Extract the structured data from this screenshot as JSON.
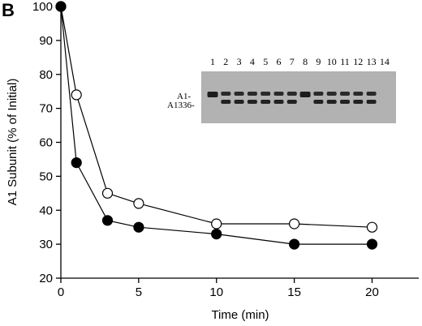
{
  "panel_label": "B",
  "chart_data": {
    "type": "line",
    "xlabel": "Time (min)",
    "ylabel": "A1 Subunit (% of Initial)",
    "xlim": [
      0,
      23
    ],
    "ylim": [
      20,
      100
    ],
    "x_ticks": [
      0,
      5,
      10,
      15,
      20
    ],
    "y_ticks": [
      20,
      30,
      40,
      50,
      60,
      70,
      80,
      90,
      100
    ],
    "grid": false,
    "legend": "none",
    "series": [
      {
        "marker": "open-circle",
        "x": [
          0,
          1,
          3,
          5,
          10,
          15,
          20
        ],
        "y": [
          100,
          74,
          45,
          42,
          36,
          36,
          35
        ]
      },
      {
        "marker": "filled-circle",
        "x": [
          0,
          1,
          3,
          5,
          10,
          15,
          20
        ],
        "y": [
          100,
          54,
          37,
          35,
          33,
          30,
          30
        ]
      }
    ]
  },
  "gel_inset": {
    "lane_labels": [
      "1",
      "2",
      "3",
      "4",
      "5",
      "6",
      "7",
      "8",
      "9",
      "10",
      "11",
      "12",
      "13",
      "14"
    ],
    "band_labels": [
      "A1-",
      "A1336-"
    ]
  }
}
